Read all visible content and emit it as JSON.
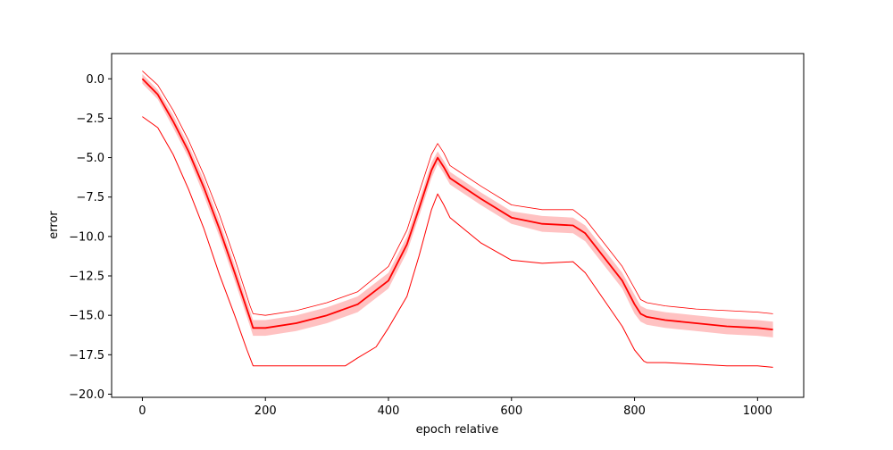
{
  "chart_data": {
    "type": "line",
    "title": "",
    "xlabel": "epoch relative",
    "ylabel": "error",
    "xlim": [
      -50,
      1075
    ],
    "ylim": [
      -20.2,
      1.6
    ],
    "xticks": [
      0,
      200,
      400,
      600,
      800,
      1000
    ],
    "yticks": [
      0.0,
      -2.5,
      -5.0,
      -7.5,
      -10.0,
      -12.5,
      -15.0,
      -17.5,
      -20.0
    ],
    "xtick_labels": [
      "0",
      "200",
      "400",
      "600",
      "800",
      "1000"
    ],
    "ytick_labels": [
      "0.0",
      "−2.5",
      "−5.0",
      "−7.5",
      "−10.0",
      "−12.5",
      "−15.0",
      "−17.5",
      "−20.0"
    ],
    "grid": false,
    "legend": "none",
    "colors": {
      "line": "#ff0000",
      "band": "#ffb3b3"
    },
    "series": [
      {
        "role": "mean",
        "x": [
          0,
          25,
          50,
          75,
          100,
          125,
          150,
          175,
          180,
          200,
          250,
          300,
          350,
          400,
          430,
          450,
          470,
          480,
          490,
          500,
          550,
          600,
          650,
          700,
          720,
          750,
          780,
          800,
          810,
          820,
          850,
          900,
          950,
          1000,
          1025
        ],
        "y": [
          0.0,
          -1.0,
          -2.7,
          -4.6,
          -6.9,
          -9.5,
          -12.3,
          -15.2,
          -15.8,
          -15.8,
          -15.5,
          -15.0,
          -14.3,
          -12.8,
          -10.5,
          -8.2,
          -5.8,
          -5.0,
          -5.6,
          -6.3,
          -7.6,
          -8.8,
          -9.2,
          -9.3,
          -9.8,
          -11.3,
          -12.8,
          -14.3,
          -14.9,
          -15.1,
          -15.3,
          -15.5,
          -15.7,
          -15.8,
          -15.9
        ]
      },
      {
        "role": "upper-envelope",
        "x": [
          0,
          25,
          50,
          75,
          100,
          125,
          150,
          175,
          180,
          200,
          250,
          300,
          350,
          400,
          430,
          450,
          470,
          480,
          490,
          500,
          550,
          600,
          650,
          700,
          720,
          750,
          780,
          800,
          810,
          820,
          850,
          900,
          950,
          1000,
          1025
        ],
        "y": [
          0.5,
          -0.4,
          -2.0,
          -3.9,
          -6.1,
          -8.6,
          -11.4,
          -14.4,
          -14.9,
          -15.0,
          -14.7,
          -14.2,
          -13.5,
          -11.9,
          -9.6,
          -7.2,
          -4.8,
          -4.1,
          -4.7,
          -5.5,
          -6.8,
          -8.0,
          -8.3,
          -8.3,
          -8.9,
          -10.4,
          -11.9,
          -13.3,
          -14.0,
          -14.2,
          -14.4,
          -14.6,
          -14.7,
          -14.8,
          -14.9
        ]
      },
      {
        "role": "lower-envelope",
        "x": [
          0,
          25,
          50,
          75,
          100,
          125,
          150,
          170,
          180,
          200,
          250,
          300,
          330,
          350,
          380,
          400,
          430,
          450,
          470,
          480,
          490,
          500,
          550,
          600,
          650,
          700,
          720,
          750,
          780,
          800,
          815,
          820,
          850,
          900,
          950,
          1000,
          1025
        ],
        "y": [
          -2.4,
          -3.1,
          -4.8,
          -7.0,
          -9.5,
          -12.4,
          -15.0,
          -17.2,
          -18.2,
          -18.2,
          -18.2,
          -18.2,
          -18.2,
          -17.7,
          -17.0,
          -15.8,
          -13.8,
          -11.2,
          -8.3,
          -7.3,
          -8.0,
          -8.8,
          -10.4,
          -11.5,
          -11.7,
          -11.6,
          -12.3,
          -14.0,
          -15.7,
          -17.2,
          -17.9,
          -18.0,
          -18.0,
          -18.1,
          -18.2,
          -18.2,
          -18.3
        ]
      }
    ],
    "band": {
      "x": [
        0,
        25,
        50,
        75,
        100,
        125,
        150,
        175,
        180,
        200,
        250,
        300,
        350,
        400,
        430,
        450,
        470,
        480,
        490,
        500,
        550,
        600,
        650,
        700,
        720,
        750,
        780,
        800,
        810,
        820,
        850,
        900,
        950,
        1000,
        1025
      ],
      "upper": [
        0.3,
        -0.7,
        -2.3,
        -4.2,
        -6.4,
        -9.0,
        -11.8,
        -14.7,
        -15.3,
        -15.3,
        -15.0,
        -14.5,
        -13.8,
        -12.3,
        -10.0,
        -7.7,
        -5.3,
        -4.6,
        -5.2,
        -5.9,
        -7.2,
        -8.4,
        -8.7,
        -8.8,
        -9.3,
        -10.8,
        -12.3,
        -13.7,
        -14.4,
        -14.6,
        -14.8,
        -15.0,
        -15.2,
        -15.3,
        -15.4
      ],
      "lower": [
        -0.3,
        -1.3,
        -3.1,
        -5.0,
        -7.4,
        -10.0,
        -12.8,
        -15.7,
        -16.3,
        -16.3,
        -16.0,
        -15.5,
        -14.8,
        -13.3,
        -11.0,
        -8.7,
        -6.3,
        -5.4,
        -6.0,
        -6.7,
        -8.0,
        -9.2,
        -9.7,
        -9.8,
        -10.3,
        -11.8,
        -13.3,
        -14.9,
        -15.4,
        -15.6,
        -15.8,
        -16.0,
        -16.2,
        -16.3,
        -16.4
      ]
    }
  }
}
